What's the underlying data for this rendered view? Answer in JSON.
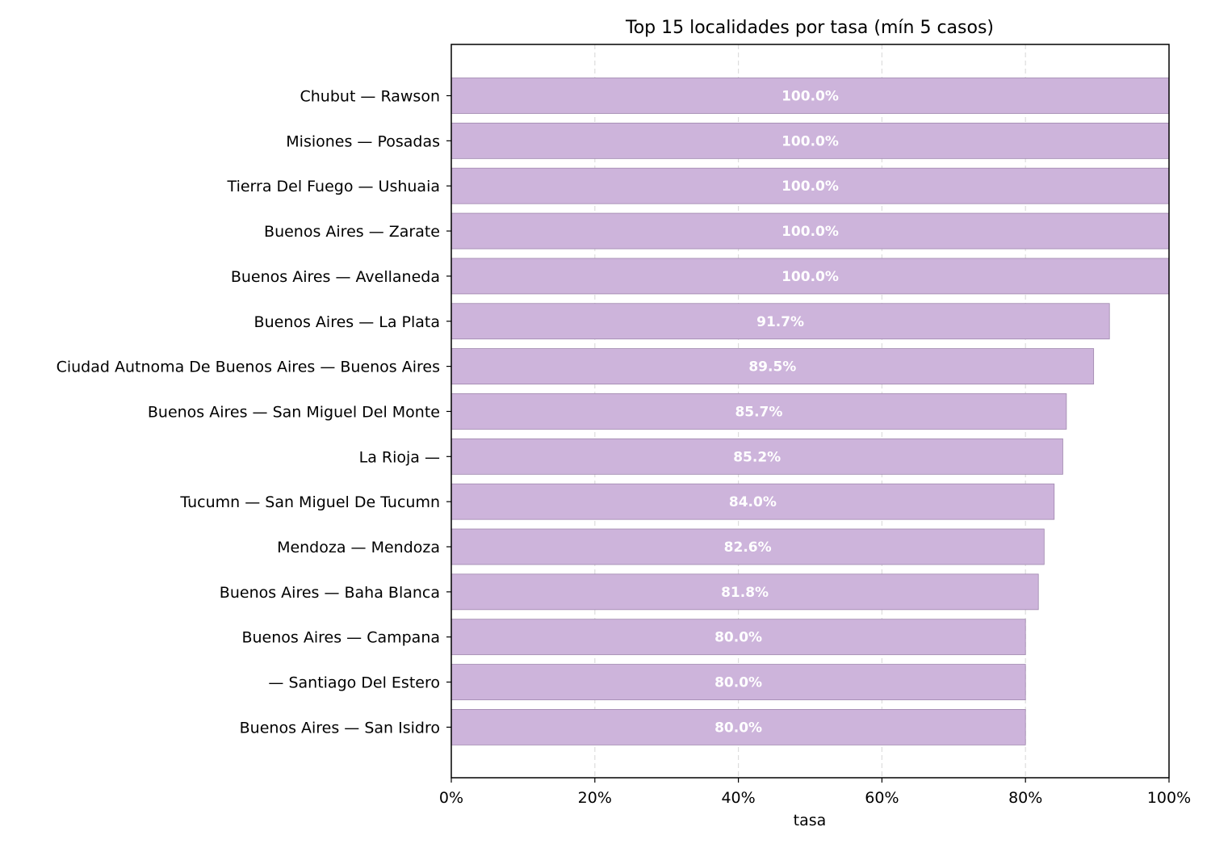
{
  "chart_data": {
    "type": "bar",
    "orientation": "horizontal",
    "title": "Top 15 localidades por tasa (mín 5 casos)",
    "xlabel": "tasa",
    "ylabel": "",
    "xlim": [
      0,
      1
    ],
    "x_ticks": [
      "0%",
      "20%",
      "40%",
      "60%",
      "80%",
      "100%"
    ],
    "x_tick_values": [
      0,
      0.2,
      0.4,
      0.6,
      0.8,
      1.0
    ],
    "grid": "vertical dashed",
    "categories": [
      "Chubut — Rawson",
      "Misiones — Posadas",
      "Tierra Del Fuego — Ushuaia",
      "Buenos Aires — Zarate",
      "Buenos Aires — Avellaneda",
      "Buenos Aires — La Plata",
      "Ciudad Autnoma De Buenos Aires — Buenos Aires",
      "Buenos Aires — San Miguel Del Monte",
      "La Rioja — ",
      "Tucumn — San Miguel De Tucumn",
      "Mendoza — Mendoza",
      "Buenos Aires — Baha Blanca",
      "Buenos Aires — Campana",
      "— Santiago Del Estero",
      "Buenos Aires — San Isidro"
    ],
    "values": [
      1.0,
      1.0,
      1.0,
      1.0,
      1.0,
      0.917,
      0.895,
      0.857,
      0.852,
      0.84,
      0.826,
      0.818,
      0.8,
      0.8,
      0.8
    ],
    "value_labels": [
      "100.0%",
      "100.0%",
      "100.0%",
      "100.0%",
      "100.0%",
      "91.7%",
      "89.5%",
      "85.7%",
      "85.2%",
      "84.0%",
      "82.6%",
      "81.8%",
      "80.0%",
      "80.0%",
      "80.0%"
    ],
    "colors": {
      "bar_fill": "#cdb4db",
      "bar_edge": "#9e86ad",
      "bar_label": "#ffffff",
      "grid": "#dddddd",
      "axis": "#000000"
    }
  }
}
